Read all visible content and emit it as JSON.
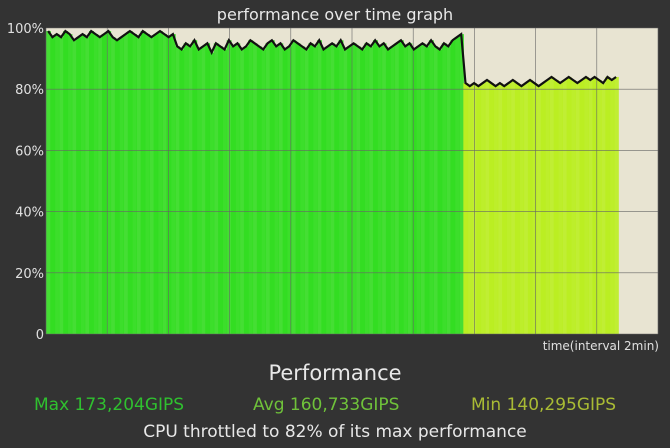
{
  "chart_data": {
    "type": "area",
    "title": "performance over time graph",
    "xlabel": "time(interval 2min)",
    "ylabel": "",
    "yticks": [
      "0",
      "20%",
      "40%",
      "60%",
      "80%",
      "100%"
    ],
    "ylim": [
      0,
      100
    ],
    "x_intervals": 10,
    "grid": true,
    "series": [
      {
        "values": [
          99,
          97,
          98,
          97,
          99,
          98,
          96,
          97,
          98,
          97,
          99,
          98,
          97,
          98,
          99,
          97,
          96,
          97,
          98,
          99,
          98,
          97,
          99,
          98,
          97,
          98,
          99,
          98,
          97,
          98,
          94,
          93,
          95,
          94,
          96,
          93,
          94,
          95,
          92,
          95,
          94,
          93,
          96,
          94,
          95,
          93,
          94,
          96,
          95,
          94,
          93,
          95,
          96,
          94,
          95,
          93,
          94,
          96,
          95,
          94,
          93,
          95,
          94,
          96,
          93,
          94,
          95,
          94,
          96,
          93,
          94,
          95,
          94,
          93,
          95,
          94,
          96,
          94,
          95,
          93,
          94,
          95,
          96,
          94,
          95,
          93,
          94,
          95,
          94,
          96,
          94,
          93,
          95,
          94,
          96,
          97,
          98,
          82,
          81,
          82,
          81,
          82,
          83,
          82,
          81,
          82,
          81,
          82,
          83,
          82,
          81,
          82,
          83,
          82,
          81,
          82,
          83,
          84,
          83,
          82,
          83,
          84,
          83,
          82,
          83,
          84,
          83,
          84,
          83,
          82,
          84,
          83,
          84
        ]
      }
    ]
  },
  "summary": {
    "heading": "Performance",
    "max": "Max 173,204GIPS",
    "avg": "Avg 160,733GIPS",
    "min": "Min 140,295GIPS",
    "throttle_note": "CPU throttled to 82% of its max performance"
  },
  "colors": {
    "plot_background": "#e8e4d2",
    "high_bar": "#33dd22",
    "throttled_bar": "#bbee22",
    "line": "#111111",
    "grid": "#666666"
  }
}
